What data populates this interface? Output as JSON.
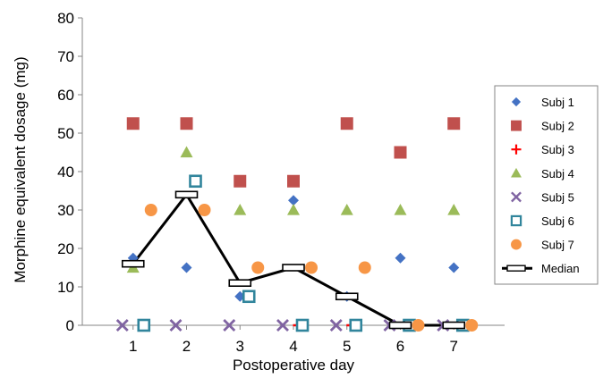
{
  "chart_data": {
    "type": "scatter",
    "xlabel": "Postoperative day",
    "ylabel": "Morphine equivalent dosage (mg)",
    "x": [
      1,
      2,
      3,
      4,
      5,
      6,
      7
    ],
    "xlim": [
      0.05,
      7.95
    ],
    "ylim": [
      0,
      80
    ],
    "yticks": [
      0,
      10,
      20,
      30,
      40,
      50,
      60,
      70,
      80
    ],
    "grid": false,
    "legend_position": "right",
    "series": [
      {
        "name": "Subj 1",
        "marker": "diamond",
        "color": "#4472C4",
        "values": [
          17.5,
          15,
          7.5,
          32.5,
          7.5,
          17.5,
          15
        ]
      },
      {
        "name": "Subj 2",
        "marker": "square",
        "color": "#C0504D",
        "values": [
          52.5,
          52.5,
          37.5,
          37.5,
          52.5,
          45,
          52.5
        ]
      },
      {
        "name": "Subj 3",
        "marker": "plus",
        "color": "#FF0000",
        "values": [
          null,
          null,
          null,
          0,
          0,
          0,
          0
        ]
      },
      {
        "name": "Subj 4",
        "marker": "triangle",
        "color": "#9BBB59",
        "values": [
          15,
          45,
          30,
          30,
          30,
          30,
          30
        ]
      },
      {
        "name": "Subj 5",
        "marker": "x",
        "color": "#8064A2",
        "values": [
          0,
          0,
          0,
          0,
          0,
          0,
          0
        ]
      },
      {
        "name": "Subj 6",
        "marker": "open-square",
        "color": "#31859C",
        "values": [
          0,
          37.5,
          7.5,
          0,
          0,
          0,
          0
        ]
      },
      {
        "name": "Subj 7",
        "marker": "circle",
        "color": "#F79646",
        "values": [
          30,
          30,
          15,
          15,
          15,
          0,
          0
        ]
      },
      {
        "name": "Median",
        "marker": "line",
        "color": "#000000",
        "values": [
          16,
          34,
          11,
          15,
          7.5,
          0,
          0
        ]
      }
    ]
  }
}
